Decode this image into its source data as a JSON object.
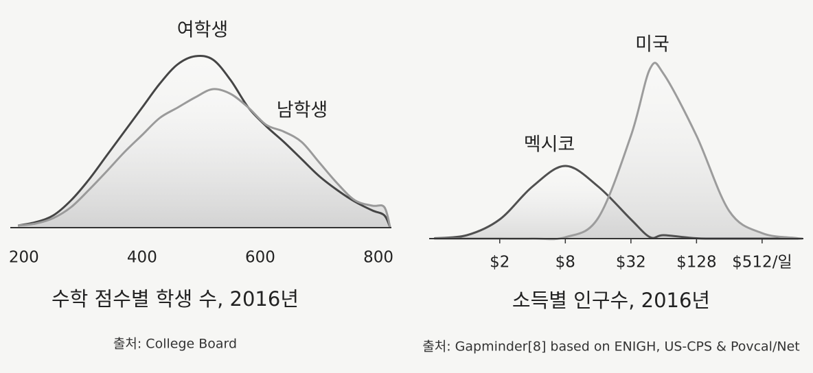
{
  "chart_data": [
    {
      "type": "line",
      "title": "수학 점수별 학생 수, 2016년",
      "source": "출처: College Board",
      "x": [
        190,
        220,
        250,
        280,
        310,
        340,
        370,
        400,
        430,
        460,
        490,
        520,
        550,
        580,
        610,
        640,
        670,
        700,
        730,
        760,
        790,
        810,
        820
      ],
      "series": [
        {
          "name": "여학생",
          "color": "#454545",
          "values": [
            3,
            8,
            18,
            40,
            70,
            105,
            140,
            175,
            210,
            238,
            250,
            245,
            215,
            175,
            148,
            125,
            100,
            75,
            55,
            38,
            25,
            18,
            0
          ]
        },
        {
          "name": "남학생",
          "color": "#9a9a9a",
          "values": [
            3,
            6,
            14,
            30,
            55,
            82,
            110,
            135,
            160,
            175,
            190,
            202,
            195,
            175,
            150,
            140,
            125,
            95,
            65,
            40,
            32,
            30,
            0
          ]
        }
      ],
      "xlim": [
        177,
        822
      ],
      "xticks": [
        200,
        400,
        600,
        800
      ],
      "ylim": [
        0,
        260
      ]
    },
    {
      "type": "line",
      "title": "소득별 인구수, 2016년",
      "source": "출처: Gapminder[8] based on ENIGH, US-CPS & Povcal/Net",
      "x": [
        0.5,
        1,
        2,
        4,
        8,
        16,
        32,
        48,
        64,
        128,
        256,
        512,
        1024,
        1200
      ],
      "series": [
        {
          "name": "멕시코",
          "color": "#505050",
          "values": [
            0.5,
            5,
            28,
            76,
            106,
            76,
            28,
            2,
            5,
            0.5,
            0,
            0,
            0,
            0
          ]
        },
        {
          "name": "미국",
          "color": "#9c9c9c",
          "values": [
            0,
            0,
            0,
            0,
            2,
            30,
            150,
            248,
            240,
            150,
            40,
            8,
            1,
            0
          ]
        }
      ],
      "xscale": "log",
      "xlim": [
        0.45,
        1225
      ],
      "xticks": [
        {
          "value": 2,
          "label": "$2"
        },
        {
          "value": 8,
          "label": "$8"
        },
        {
          "value": 32,
          "label": "$32"
        },
        {
          "value": 128,
          "label": "$128"
        },
        {
          "value": 512,
          "label": "$512/일"
        }
      ],
      "ylim": [
        0,
        260
      ]
    }
  ]
}
